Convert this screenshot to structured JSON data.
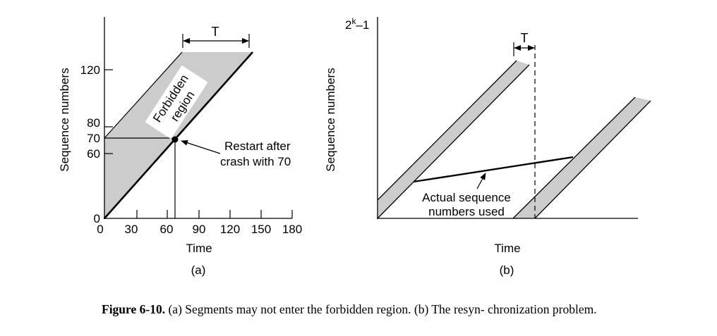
{
  "figure_a": {
    "ylabel": "Sequence numbers",
    "xlabel": "Time",
    "panel_label": "(a)",
    "y_ticks": [
      "0",
      "60",
      "70",
      "80",
      "120"
    ],
    "x_ticks": [
      "0",
      "30",
      "60",
      "90",
      "120",
      "150",
      "180"
    ],
    "t_label": "T",
    "region_label_line1": "Forbidden",
    "region_label_line2": "region",
    "annotation_line1": "Restart after",
    "annotation_line2": "crash with 70"
  },
  "figure_b": {
    "ylabel": "Sequence numbers",
    "xlabel": "Time",
    "panel_label": "(b)",
    "y_max_base": "2",
    "y_max_exp": "k",
    "y_max_suffix": "–1",
    "t_label": "T",
    "annotation_line1": "Actual sequence",
    "annotation_line2": "numbers used"
  },
  "caption": {
    "label": "Figure 6-10.",
    "text": " (a) Segments may not enter the forbidden region.  (b) The resyn- chronization problem."
  }
}
